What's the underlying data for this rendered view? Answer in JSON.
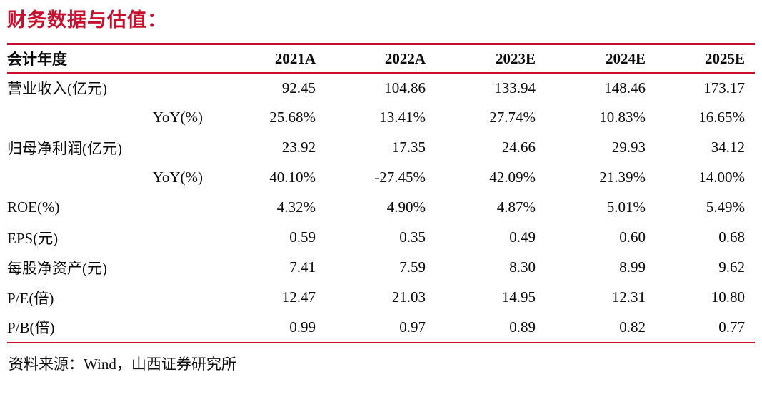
{
  "title": "财务数据与估值：",
  "colors": {
    "accent_rule": "#C8102E",
    "title_text": "#C8102E",
    "body_text": "#0a0a0a"
  },
  "table": {
    "header": {
      "label": "会计年度",
      "cols": [
        "2021A",
        "2022A",
        "2023E",
        "2024E",
        "2025E"
      ]
    },
    "rows": [
      {
        "label": "营业收入(亿元)",
        "values": [
          "92.45",
          "104.86",
          "133.94",
          "148.46",
          "173.17"
        ]
      },
      {
        "label": "YoY(%)",
        "values": [
          "25.68%",
          "13.41%",
          "27.74%",
          "10.83%",
          "16.65%"
        ]
      },
      {
        "label": "归母净利润(亿元)",
        "values": [
          "23.92",
          "17.35",
          "24.66",
          "29.93",
          "34.12"
        ]
      },
      {
        "label": "YoY(%)",
        "values": [
          "40.10%",
          "-27.45%",
          "42.09%",
          "21.39%",
          "14.00%"
        ]
      },
      {
        "label": "ROE(%)",
        "values": [
          "4.32%",
          "4.90%",
          "4.87%",
          "5.01%",
          "5.49%"
        ]
      },
      {
        "label": "EPS(元)",
        "values": [
          "0.59",
          "0.35",
          "0.49",
          "0.60",
          "0.68"
        ]
      },
      {
        "label": "每股净资产(元)",
        "values": [
          "7.41",
          "7.59",
          "8.30",
          "8.99",
          "9.62"
        ]
      },
      {
        "label": "P/E(倍)",
        "values": [
          "12.47",
          "21.03",
          "14.95",
          "12.31",
          "10.80"
        ]
      },
      {
        "label": "P/B(倍)",
        "values": [
          "0.99",
          "0.97",
          "0.89",
          "0.82",
          "0.77"
        ]
      }
    ]
  },
  "footer": {
    "source": "资料来源：Wind，山西证券研究所"
  }
}
